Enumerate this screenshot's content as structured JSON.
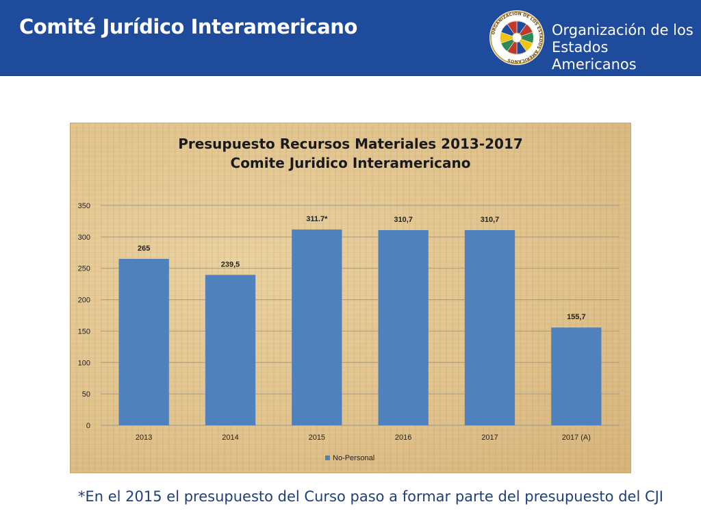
{
  "header": {
    "title": "Comité Jurídico Interamericano",
    "org_line1": "Organización de los",
    "org_line2": "Estados Americanos",
    "seal_text": "ORGANIZACION DE LOS ESTADOS AMERICANOS",
    "color": "#1f4b9c"
  },
  "footnote": "*En el 2015 el presupuesto del Curso paso a formar parte del presupuesto del CJI",
  "chart_data": {
    "type": "bar",
    "title": "Presupuesto Recursos Materiales 2013-2017",
    "subtitle": "Comite Juridico Interamericano",
    "categories": [
      "2013",
      "2014",
      "2015",
      "2016",
      "2017",
      "2017 (A)"
    ],
    "series": [
      {
        "name": "No-Personal",
        "color": "#4f81bd",
        "values": [
          265,
          239.5,
          311.7,
          310.7,
          310.7,
          155.7
        ],
        "labels": [
          "265",
          "239,5",
          "311.7*",
          "310,7",
          "310,7",
          "155,7"
        ]
      }
    ],
    "yticks": [
      0,
      50,
      100,
      150,
      200,
      250,
      300,
      350
    ],
    "ylim": [
      0,
      350
    ],
    "grid": true,
    "legend_position": "bottom"
  }
}
